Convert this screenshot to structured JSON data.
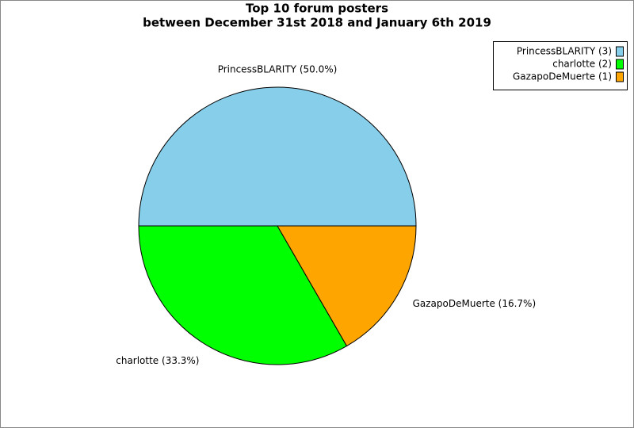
{
  "chart_data": {
    "type": "pie",
    "title": "Top 10 forum posters",
    "subtitle": "between December 31st 2018 and January 6th 2019",
    "categories": [
      "PrincessBLARITY",
      "charlotte",
      "GazapoDeMuerte"
    ],
    "values": [
      3,
      2,
      1
    ],
    "colors": [
      "#87ceeb",
      "#00ff00",
      "#ffa500"
    ],
    "slice_labels": [
      "PrincessBLARITY (50.0%)",
      "charlotte (33.3%)",
      "GazapoDeMuerte (16.7%)"
    ],
    "legend_labels": [
      "PrincessBLARITY (3)",
      "charlotte (2)",
      "GazapoDeMuerte (1)"
    ],
    "legend": "top-right"
  }
}
